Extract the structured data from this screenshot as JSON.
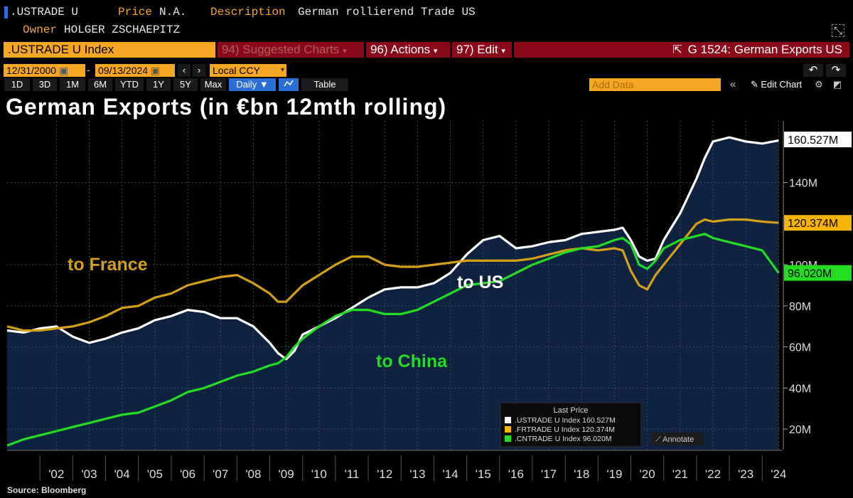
{
  "header": {
    "ticker": ".USTRADE U",
    "price_label": "Price",
    "price_value": "N.A.",
    "description_label": "Description",
    "description_value": "German rollierend Trade US",
    "owner_label": "Owner",
    "owner_value": "HOLGER ZSCHAEPITZ"
  },
  "toolbar": {
    "security": ".USTRADE U Index",
    "suggested": "94) Suggested Charts",
    "actions": "96) Actions",
    "edit": "97) Edit",
    "chart_id": "G 1524: German Exports US",
    "date_from": "12/31/2000",
    "date_to": "09/13/2024",
    "currency": "Local CCY",
    "periods": [
      "1D",
      "3D",
      "1M",
      "6M",
      "YTD",
      "1Y",
      "5Y",
      "Max"
    ],
    "frequency": "Daily",
    "table_label": "Table",
    "add_data_placeholder": "Add Data",
    "edit_chart": "Edit Chart"
  },
  "colors": {
    "us": "#ffffff",
    "france": "#d4a017",
    "china": "#22dd22",
    "area": "#0f2340",
    "orange": "#f5a623",
    "red": "#8b0a1a"
  },
  "annotations": {
    "france": "to France",
    "us": "to US",
    "china": "to China"
  },
  "legend": {
    "title": "Last Price",
    "entries": [
      ".USTRADE U Index 160.527M",
      ".FRTRADE U Index 120.374M",
      ".CNTRADE U Index 96.020M"
    ],
    "annotate": "Annotate"
  },
  "source": "Source: Bloomberg",
  "chart_data": {
    "type": "line",
    "title": "German Exports (in €bn 12mth rolling)",
    "xlabel": "",
    "ylabel": "",
    "ylim": [
      10,
      170
    ],
    "x_ticks": [
      "'02",
      "'03",
      "'04",
      "'05",
      "'06",
      "'07",
      "'08",
      "'09",
      "'10",
      "'11",
      "'12",
      "'13",
      "'14",
      "'15",
      "'16",
      "'17",
      "'18",
      "'19",
      "'20",
      "'21",
      "'22",
      "'23",
      "'24"
    ],
    "y_ticks": [
      20,
      40,
      60,
      80,
      100,
      140
    ],
    "y_tick_labels": [
      "20M",
      "40M",
      "60M",
      "80M",
      "100M",
      "140M"
    ],
    "x": [
      2001.0,
      2001.5,
      2002.0,
      2002.5,
      2003.0,
      2003.5,
      2004.0,
      2004.5,
      2005.0,
      2005.5,
      2006.0,
      2006.5,
      2007.0,
      2007.5,
      2008.0,
      2008.5,
      2009.0,
      2009.25,
      2009.5,
      2009.75,
      2010.0,
      2010.5,
      2011.0,
      2011.5,
      2012.0,
      2012.5,
      2013.0,
      2013.5,
      2014.0,
      2014.5,
      2015.0,
      2015.5,
      2016.0,
      2016.5,
      2017.0,
      2017.5,
      2018.0,
      2018.5,
      2019.0,
      2019.5,
      2019.75,
      2020.0,
      2020.25,
      2020.5,
      2020.75,
      2021.0,
      2021.5,
      2022.0,
      2022.25,
      2022.5,
      2023.0,
      2023.5,
      2024.0,
      2024.5
    ],
    "series": [
      {
        "name": ".USTRADE U Index",
        "last": "160.527M",
        "values": [
          68,
          67,
          69,
          70,
          65,
          62,
          64,
          67,
          69,
          73,
          75,
          78,
          77,
          74,
          74,
          70,
          62,
          57,
          54,
          58,
          66,
          70,
          74,
          79,
          84,
          88,
          89,
          89,
          91,
          96,
          105,
          112,
          114,
          108,
          109,
          111,
          112,
          115,
          116,
          117,
          118,
          112,
          104,
          102,
          103,
          112,
          125,
          142,
          152,
          160,
          162,
          160,
          159,
          160.5
        ]
      },
      {
        "name": ".FRTRADE U Index",
        "last": "120.374M",
        "values": [
          70,
          68,
          68,
          69,
          70,
          72,
          75,
          79,
          80,
          84,
          86,
          90,
          92,
          94,
          95,
          91,
          86,
          82,
          82,
          86,
          90,
          95,
          100,
          104,
          104,
          100,
          99,
          99,
          100,
          101,
          102,
          102,
          102,
          102,
          103,
          105,
          107,
          108,
          107,
          108,
          107,
          97,
          90,
          88,
          95,
          100,
          110,
          120,
          122,
          121,
          122,
          122,
          121,
          120.4
        ]
      },
      {
        "name": ".CNTRADE U Index",
        "last": "96.020M",
        "values": [
          12,
          15,
          17,
          19,
          21,
          23,
          25,
          27,
          28,
          31,
          34,
          38,
          40,
          43,
          46,
          48,
          51,
          52,
          55,
          60,
          64,
          70,
          75,
          78,
          78,
          76,
          76,
          78,
          82,
          86,
          90,
          91,
          92,
          96,
          100,
          103,
          106,
          108,
          109,
          112,
          113,
          110,
          100,
          98,
          102,
          108,
          112,
          114,
          115,
          113,
          111,
          109,
          107,
          96
        ]
      }
    ]
  }
}
